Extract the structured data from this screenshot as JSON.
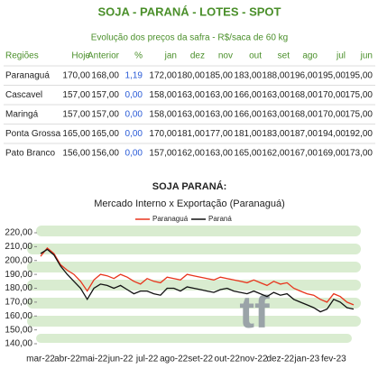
{
  "header": {
    "title": "SOJA - PARANÁ - LOTES - SPOT",
    "subtitle": "Evolução dos preços da safra - R$/saca de 60 kg"
  },
  "table": {
    "columns": [
      "Regiões",
      "Hoje",
      "Anterior",
      "%",
      "jan",
      "dez",
      "nov",
      "out",
      "set",
      "ago",
      "jul",
      "jun"
    ],
    "rows": [
      [
        "Paranaguá",
        "170,00",
        "168,00",
        "1,19",
        "172,00",
        "180,00",
        "185,00",
        "183,00",
        "188,00",
        "196,00",
        "195,00",
        "195,00"
      ],
      [
        "Cascavel",
        "157,00",
        "157,00",
        "0,00",
        "158,00",
        "163,00",
        "163,00",
        "166,00",
        "163,00",
        "168,00",
        "170,00",
        "175,00"
      ],
      [
        "Maringá",
        "157,00",
        "157,00",
        "0,00",
        "158,00",
        "163,00",
        "163,00",
        "166,00",
        "163,00",
        "168,00",
        "170,00",
        "175,00"
      ],
      [
        "Ponta Grossa",
        "165,00",
        "165,00",
        "0,00",
        "170,00",
        "181,00",
        "177,00",
        "181,00",
        "183,00",
        "187,00",
        "194,00",
        "192,00"
      ],
      [
        "Pato Branco",
        "156,00",
        "156,00",
        "0,00",
        "157,00",
        "162,00",
        "163,00",
        "165,00",
        "162,00",
        "167,00",
        "169,00",
        "173,00"
      ]
    ]
  },
  "chart_data": {
    "type": "line",
    "title": "SOJA PARANÁ:",
    "subtitle": "Mercado Interno x Exportação (Paranaguá)",
    "watermark": "tf",
    "categories": [
      "mar-22",
      null,
      null,
      null,
      "abr-22",
      null,
      null,
      null,
      "mai-22",
      null,
      null,
      null,
      "jun-22",
      null,
      null,
      null,
      "jul-22",
      null,
      null,
      null,
      "ago-22",
      null,
      null,
      null,
      "set-22",
      null,
      null,
      null,
      "out-22",
      null,
      null,
      null,
      "nov-22",
      null,
      null,
      null,
      "dez-22",
      null,
      null,
      null,
      "jan-23",
      null,
      null,
      null,
      "fev-23",
      null,
      null,
      null
    ],
    "series": [
      {
        "name": "Paranaguá",
        "color": "#e8341c",
        "values": [
          203,
          209,
          205,
          197,
          193,
          190,
          185,
          178,
          186,
          190,
          189,
          187,
          190,
          188,
          185,
          183,
          187,
          185,
          184,
          188,
          187,
          186,
          190,
          189,
          188,
          187,
          186,
          188,
          187,
          186,
          185,
          184,
          186,
          184,
          182,
          185,
          183,
          184,
          180,
          178,
          176,
          175,
          172,
          170,
          176,
          174,
          170,
          168
        ]
      },
      {
        "name": "Paraná",
        "color": "#111111",
        "values": [
          205,
          208,
          204,
          196,
          190,
          185,
          180,
          172,
          180,
          183,
          182,
          180,
          182,
          179,
          176,
          178,
          178,
          176,
          175,
          180,
          180,
          178,
          181,
          180,
          179,
          178,
          177,
          179,
          180,
          178,
          177,
          176,
          178,
          176,
          174,
          177,
          175,
          176,
          172,
          170,
          168,
          166,
          163,
          165,
          172,
          170,
          166,
          165
        ]
      }
    ],
    "ylim": [
      140,
      220
    ],
    "yticks": [
      {
        "value": 140,
        "label": "140,00"
      },
      {
        "value": 150,
        "label": "150,00"
      },
      {
        "value": 160,
        "label": "160,00"
      },
      {
        "value": 170,
        "label": "170,00"
      },
      {
        "value": 180,
        "label": "180,00"
      },
      {
        "value": 190,
        "label": "190,00"
      },
      {
        "value": 200,
        "label": "200,00"
      },
      {
        "value": 210,
        "label": "210,00"
      },
      {
        "value": 220,
        "label": "220,00"
      }
    ]
  }
}
